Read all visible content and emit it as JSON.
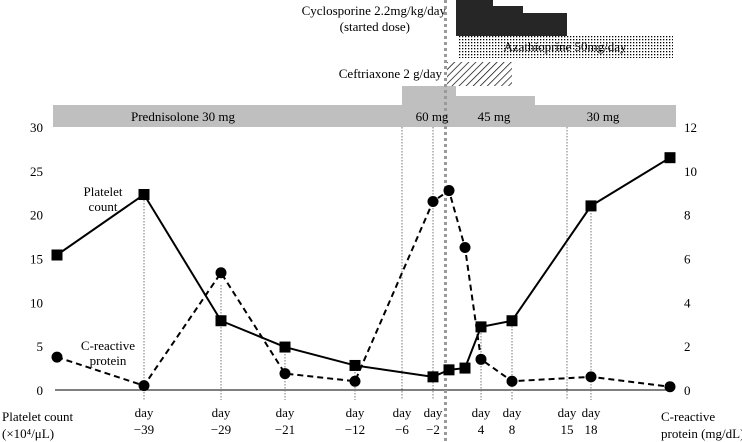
{
  "chart_data": {
    "type": "line",
    "x": [
      -49,
      -39,
      -29,
      -21,
      -12,
      -2,
      1,
      3,
      4,
      8,
      18,
      28
    ],
    "x_ticks": [
      {
        "day": -39,
        "top": "day",
        "bottom": "−39"
      },
      {
        "day": -29,
        "top": "day",
        "bottom": "−29"
      },
      {
        "day": -21,
        "top": "day",
        "bottom": "−21"
      },
      {
        "day": -12,
        "top": "day",
        "bottom": "−12"
      },
      {
        "day": -6,
        "top": "day",
        "bottom": "−6"
      },
      {
        "day": -2,
        "top": "day",
        "bottom": "−2"
      },
      {
        "day": 4,
        "top": "day",
        "bottom": "4"
      },
      {
        "day": 8,
        "top": "day",
        "bottom": "8"
      },
      {
        "day": 15,
        "top": "day",
        "bottom": "15"
      },
      {
        "day": 18,
        "top": "day",
        "bottom": "18"
      }
    ],
    "series": [
      {
        "name": "Platelet count",
        "axis": "left",
        "marker": "square",
        "line": "solid",
        "points": [
          [
            -49,
            15.4
          ],
          [
            -39,
            22.3
          ],
          [
            -29,
            7.9
          ],
          [
            -21,
            4.9
          ],
          [
            -12,
            2.8
          ],
          [
            -2,
            1.5
          ],
          [
            1,
            2.3
          ],
          [
            3,
            2.5
          ],
          [
            4,
            7.2
          ],
          [
            8,
            7.9
          ],
          [
            18,
            21.0
          ],
          [
            28,
            26.5
          ]
        ]
      },
      {
        "name": "C-reactive protein",
        "axis": "right",
        "marker": "circle",
        "line": "dashed",
        "points": [
          [
            -49,
            1.5
          ],
          [
            -39,
            0.2
          ],
          [
            -29,
            5.35
          ],
          [
            -21,
            0.75
          ],
          [
            -12,
            0.4
          ],
          [
            -2,
            8.6
          ],
          [
            1,
            9.1
          ],
          [
            3,
            6.5
          ],
          [
            4,
            1.4
          ],
          [
            8,
            0.4
          ],
          [
            18,
            0.6
          ],
          [
            28,
            0.15
          ]
        ]
      }
    ],
    "y_left": {
      "label_line1": "Platelet count",
      "label_line2": "(×10⁴/μL)",
      "ylim": [
        0,
        30
      ],
      "ticks": [
        0,
        5,
        10,
        15,
        20,
        25,
        30
      ]
    },
    "y_right": {
      "label_line1": "C-reactive",
      "label_line2": "protein (mg/dL)",
      "ylim": [
        0,
        12
      ],
      "ticks": [
        0,
        2,
        4,
        6,
        8,
        10,
        12
      ]
    },
    "series_labels": {
      "platelet_line1": "Platelet",
      "platelet_line2": "count",
      "crp_line1": "C-reactive",
      "crp_line2": "protein"
    },
    "treatments": {
      "prednisolone": {
        "segments": [
          {
            "label": "Prednisolone 30 mg",
            "start": -57,
            "end": -6
          },
          {
            "label": "60 mg",
            "start": -6,
            "end": 2
          },
          {
            "label": "45 mg",
            "start": 2,
            "end": 10
          },
          {
            "label": "30 mg",
            "start": 10,
            "end": 33
          }
        ],
        "color": "#bfbfbf"
      },
      "ceftriaxone": {
        "label": "Ceftriaxone 2 g/day",
        "start": -2,
        "end": 8
      },
      "azathioprine": {
        "label": "Azathioprine 50mg/day",
        "start": 2,
        "end": 33
      },
      "cyclosporine": {
        "label_line1": "Cyclosporine 2.2mg/kg/day",
        "label_line2": "(started dose)",
        "start": 2,
        "end": 15
      }
    },
    "grid": false,
    "vline_day": 0.5
  }
}
